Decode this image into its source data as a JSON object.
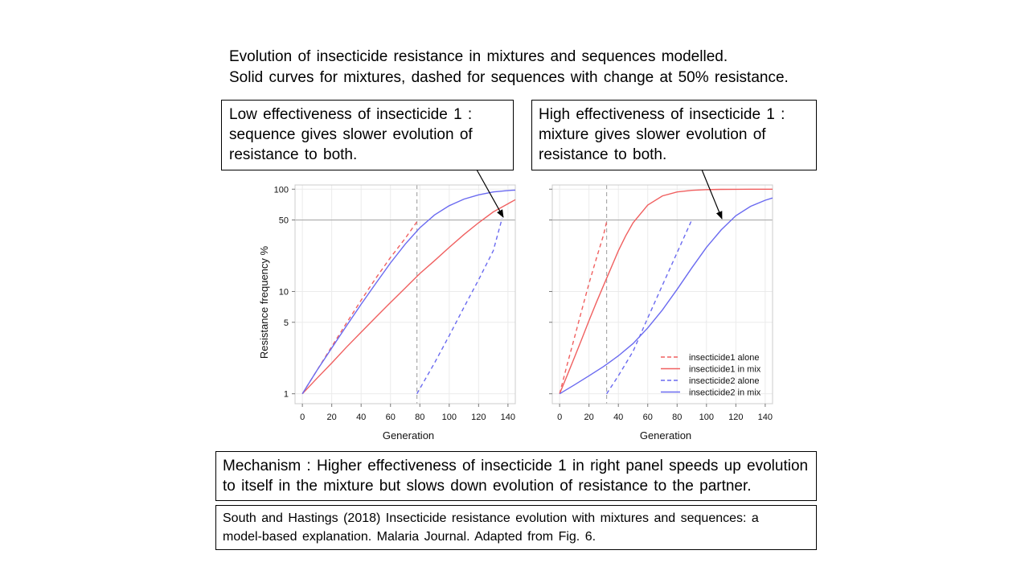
{
  "header": {
    "line1": "Evolution of insecticide resistance in mixtures and sequences modelled.",
    "line2": "Solid curves for mixtures, dashed for sequences with change at 50% resistance."
  },
  "callouts": {
    "left": {
      "lines": [
        "Low effectiveness  of insecticide 1 :",
        "sequence gives slower evolution of",
        "resistance to both."
      ]
    },
    "right": {
      "lines": [
        "High effectiveness  of insecticide 1 :",
        "mixture gives slower evolution of",
        "resistance to both."
      ]
    }
  },
  "mechanism": {
    "lines": [
      "Mechanism : Higher effectiveness  of insecticide 1 in right panel speeds up evolution",
      "to itself in the mixture but slows down evolution of resistance to the partner."
    ]
  },
  "citation": {
    "lines": [
      "South and Hastings (2018) Insecticide resistance evolution with mixtures and sequences: a",
      "model-based explanation. Malaria Journal. Adapted from Fig. 6."
    ]
  },
  "colors": {
    "insecticide1": "#f06060",
    "insecticide2": "#6a6af0",
    "grid": "#ebebeb",
    "reference": "#aaaaaa"
  },
  "chart_data": [
    {
      "type": "line",
      "panel": "left",
      "xlabel": "Generation",
      "ylabel": "Resistance frequency %",
      "xlim": [
        -5,
        145
      ],
      "ylim": [
        0.8,
        110
      ],
      "yscale": "log",
      "x_ticks": [
        0,
        20,
        40,
        60,
        80,
        100,
        120,
        140
      ],
      "y_ticks": [
        1,
        5,
        10,
        50,
        100
      ],
      "switch_generation": 78,
      "threshold_percent": 50,
      "series": [
        {
          "name": "insecticide1 alone",
          "style": "dashed",
          "color": "#f06060",
          "x": [
            0,
            10,
            20,
            30,
            40,
            50,
            60,
            70,
            78
          ],
          "y": [
            1,
            1.7,
            2.9,
            4.9,
            8.2,
            13.5,
            21.5,
            33,
            48
          ]
        },
        {
          "name": "insecticide1 in mix",
          "style": "solid",
          "color": "#f06060",
          "x": [
            0,
            10,
            20,
            30,
            40,
            50,
            60,
            70,
            80,
            90,
            100,
            110,
            120,
            130,
            140,
            145
          ],
          "y": [
            1,
            1.42,
            2.0,
            2.85,
            4.0,
            5.6,
            7.8,
            10.8,
            15,
            20,
            27,
            36,
            47,
            60,
            72,
            79
          ]
        },
        {
          "name": "insecticide2 alone",
          "style": "dashed",
          "color": "#6a6af0",
          "x": [
            78,
            90,
            100,
            110,
            120,
            130,
            136
          ],
          "y": [
            1,
            2.0,
            3.7,
            7.0,
            13,
            25,
            52
          ]
        },
        {
          "name": "insecticide2 in mix",
          "style": "solid",
          "color": "#6a6af0",
          "x": [
            0,
            10,
            20,
            30,
            40,
            50,
            60,
            70,
            80,
            90,
            100,
            110,
            120,
            130,
            140,
            145
          ],
          "y": [
            1,
            1.7,
            2.8,
            4.6,
            7.5,
            12,
            19,
            29,
            42,
            56,
            69,
            80,
            88,
            94,
            97,
            98
          ]
        }
      ]
    },
    {
      "type": "line",
      "panel": "right",
      "xlabel": "Generation",
      "ylabel": "",
      "xlim": [
        -5,
        145
      ],
      "ylim": [
        0.8,
        110
      ],
      "yscale": "log",
      "x_ticks": [
        0,
        20,
        40,
        60,
        80,
        100,
        120,
        140
      ],
      "y_ticks": [
        1,
        5,
        10,
        50,
        100
      ],
      "switch_generation": 32,
      "threshold_percent": 50,
      "legend": {
        "position": "bottom-right"
      },
      "series": [
        {
          "name": "insecticide1 alone",
          "style": "dashed",
          "color": "#f06060",
          "x": [
            0,
            5,
            10,
            15,
            20,
            25,
            30,
            32
          ],
          "y": [
            1,
            1.9,
            3.5,
            6.5,
            12,
            21,
            36,
            48
          ]
        },
        {
          "name": "insecticide1 in mix",
          "style": "solid",
          "color": "#f06060",
          "x": [
            0,
            5,
            10,
            15,
            20,
            25,
            30,
            35,
            40,
            45,
            50,
            60,
            70,
            80,
            90,
            100,
            110,
            120,
            130,
            145
          ],
          "y": [
            1,
            1.5,
            2.25,
            3.4,
            5.2,
            7.8,
            11.5,
            17,
            25,
            35,
            47,
            70,
            86,
            94,
            97.5,
            99,
            99.6,
            99.8,
            99.9,
            100
          ]
        },
        {
          "name": "insecticide2 alone",
          "style": "dashed",
          "color": "#6a6af0",
          "x": [
            32,
            40,
            50,
            60,
            70,
            80,
            90
          ],
          "y": [
            1,
            1.5,
            2.6,
            5.5,
            11.5,
            24,
            50
          ]
        },
        {
          "name": "insecticide2 in mix",
          "style": "solid",
          "color": "#6a6af0",
          "x": [
            0,
            10,
            20,
            30,
            40,
            50,
            60,
            70,
            80,
            90,
            100,
            110,
            120,
            130,
            140,
            145
          ],
          "y": [
            1,
            1.22,
            1.5,
            1.85,
            2.35,
            3.1,
            4.4,
            6.6,
            10.5,
            17,
            27,
            40,
            55,
            68,
            78,
            82
          ]
        }
      ]
    }
  ]
}
